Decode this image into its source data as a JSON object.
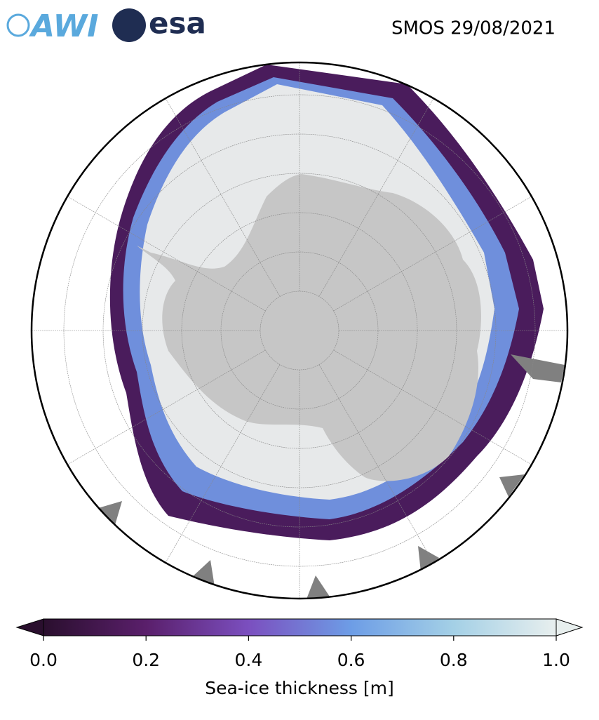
{
  "header": {
    "logos": [
      "AWI",
      "esa"
    ],
    "title": "SMOS 29/08/2021"
  },
  "colorbar": {
    "label": "Sea-ice thickness [m]",
    "lim": [
      0,
      1
    ],
    "ticks": [
      {
        "value": 0,
        "label": "0.0"
      },
      {
        "value": 0.2,
        "label": "0.2"
      },
      {
        "value": 0.4,
        "label": "0.4"
      },
      {
        "value": 0.6,
        "label": "0.6"
      },
      {
        "value": 0.8,
        "label": "0.8"
      },
      {
        "value": 1,
        "label": "1.0"
      }
    ],
    "colormap": [
      "#2a0f2e",
      "#5a1f6b",
      "#7b4fbf",
      "#6d9de6",
      "#a4d0e6",
      "#e8efee"
    ]
  }
}
